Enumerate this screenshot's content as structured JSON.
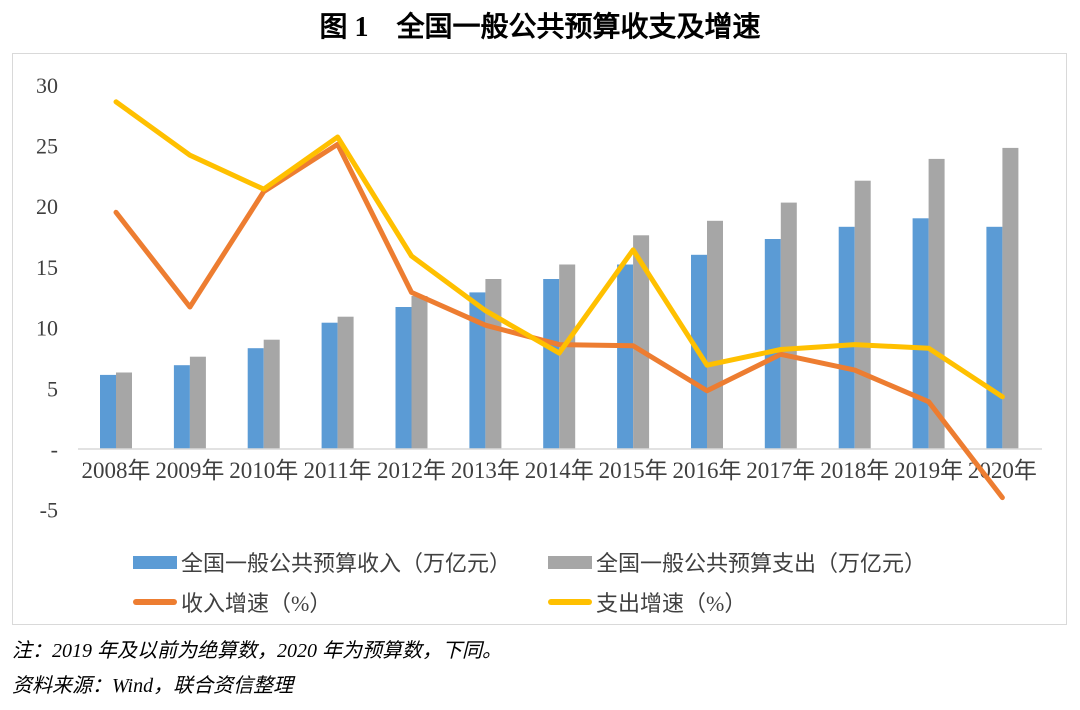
{
  "title": "图 1　全国一般公共预算收支及增速",
  "notes": {
    "note_line": "注：2019 年及以前为绝算数，2020 年为预算数，下同。",
    "source_line": "资料来源：Wind，联合资信整理"
  },
  "chart_data": {
    "type": "bar+line combo",
    "title": "图 1　全国一般公共预算收支及增速",
    "categories": [
      "2008年",
      "2009年",
      "2010年",
      "2011年",
      "2012年",
      "2013年",
      "2014年",
      "2015年",
      "2016年",
      "2017年",
      "2018年",
      "2019年",
      "2020年"
    ],
    "series": [
      {
        "name": "全国一般公共预算收入（万亿元）",
        "type": "bar",
        "color": "#5B9BD5",
        "values": [
          6.1,
          6.9,
          8.3,
          10.4,
          11.7,
          12.9,
          14.0,
          15.2,
          16.0,
          17.3,
          18.3,
          19.0,
          18.3
        ]
      },
      {
        "name": "全国一般公共预算支出（万亿元）",
        "type": "bar",
        "color": "#A6A6A6",
        "values": [
          6.3,
          7.6,
          9.0,
          10.9,
          12.6,
          14.0,
          15.2,
          17.6,
          18.8,
          20.3,
          22.1,
          23.9,
          24.8
        ]
      },
      {
        "name": "收入增速（%）",
        "type": "line",
        "color": "#ED7D31",
        "values": [
          19.5,
          11.7,
          21.2,
          25.1,
          12.9,
          10.2,
          8.6,
          8.5,
          4.8,
          7.8,
          6.5,
          3.9,
          -4.0
        ]
      },
      {
        "name": "支出增速（%）",
        "type": "line",
        "color": "#FFC000",
        "values": [
          28.6,
          24.2,
          21.4,
          25.7,
          15.9,
          11.4,
          7.9,
          16.4,
          6.9,
          8.2,
          8.6,
          8.3,
          4.3
        ]
      }
    ],
    "y_axis": {
      "range": [
        -5,
        30
      ],
      "ticks": [
        {
          "label": "30",
          "value": 30
        },
        {
          "label": "25",
          "value": 25
        },
        {
          "label": "20",
          "value": 20
        },
        {
          "label": "15",
          "value": 15
        },
        {
          "label": "10",
          "value": 10
        },
        {
          "label": "5",
          "value": 5
        },
        {
          "label": "-",
          "value": 0
        },
        {
          "label": "-5",
          "value": -5
        }
      ]
    },
    "grid": false,
    "legend_position": "bottom-inside",
    "style": {
      "frame_border": "#D9D9D9",
      "axis_line": "#D9D9D9",
      "tick_label_color": "#3F3F3F",
      "x_label_color": "#3F3F3F",
      "legend_text_color": "#404040",
      "background": "#FFFFFF"
    }
  }
}
